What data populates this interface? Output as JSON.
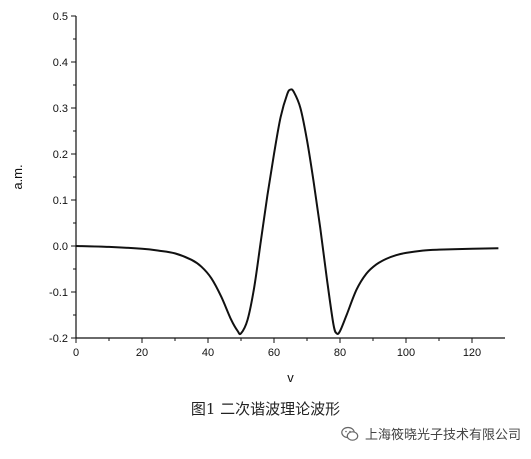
{
  "caption": "图1 二次谐波理论波形",
  "watermark": {
    "text": "上海筱晓光子技术有限公司",
    "icon": "wechat-icon"
  },
  "chart_data": {
    "type": "line",
    "title": "",
    "xlabel": "v",
    "ylabel": "a.m.",
    "xlim": [
      0,
      130
    ],
    "ylim": [
      -0.2,
      0.5
    ],
    "xticks": [
      0,
      20,
      40,
      60,
      80,
      100,
      120
    ],
    "xtick_labels": [
      "0",
      "20",
      "40",
      "60",
      "80",
      "100",
      "120"
    ],
    "yticks": [
      -0.2,
      -0.1,
      0.0,
      0.1,
      0.2,
      0.3,
      0.4,
      0.5
    ],
    "ytick_labels": [
      "-0.2",
      "-0.1",
      "0.0",
      "0.1",
      "0.2",
      "0.3",
      "0.4",
      "0.5"
    ],
    "grid": false,
    "line_color": "#111111",
    "series": [
      {
        "x": [
          0,
          10,
          20,
          25,
          30,
          35,
          38,
          41,
          44,
          47,
          49,
          50,
          52,
          54,
          56,
          58,
          60,
          62,
          64,
          65,
          66,
          68,
          70,
          72,
          74,
          76,
          78,
          79,
          80,
          82,
          85,
          88,
          91,
          94,
          97,
          100,
          105,
          110,
          120,
          128
        ],
        "y": [
          0.0,
          -0.002,
          -0.006,
          -0.01,
          -0.016,
          -0.03,
          -0.045,
          -0.07,
          -0.11,
          -0.16,
          -0.185,
          -0.19,
          -0.16,
          -0.09,
          0.01,
          0.11,
          0.2,
          0.28,
          0.33,
          0.34,
          0.335,
          0.3,
          0.23,
          0.14,
          0.04,
          -0.07,
          -0.17,
          -0.19,
          -0.185,
          -0.15,
          -0.095,
          -0.06,
          -0.04,
          -0.028,
          -0.02,
          -0.015,
          -0.01,
          -0.008,
          -0.006,
          -0.005
        ]
      }
    ]
  }
}
